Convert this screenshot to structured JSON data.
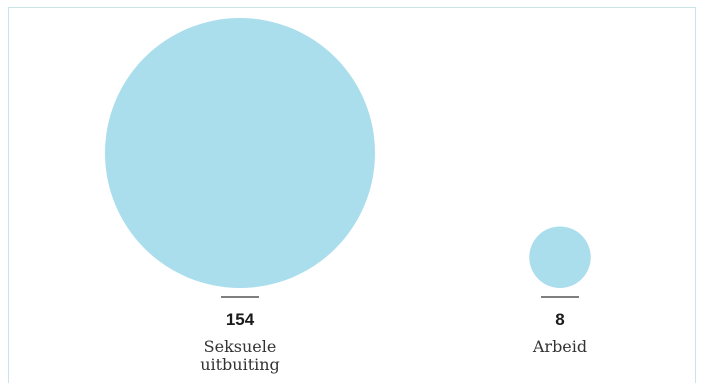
{
  "chart_data": {
    "type": "bubble",
    "categories": [
      "Seksuele uitbuiting",
      "Arbeid"
    ],
    "category_lines": [
      [
        "Seksuele",
        "uitbuiting"
      ],
      [
        "Arbeid"
      ]
    ],
    "values": [
      154,
      8
    ],
    "value_labels": [
      "154",
      "8"
    ],
    "bubble_color": "#abdeed",
    "title": "",
    "legend": "none",
    "grid": false
  }
}
